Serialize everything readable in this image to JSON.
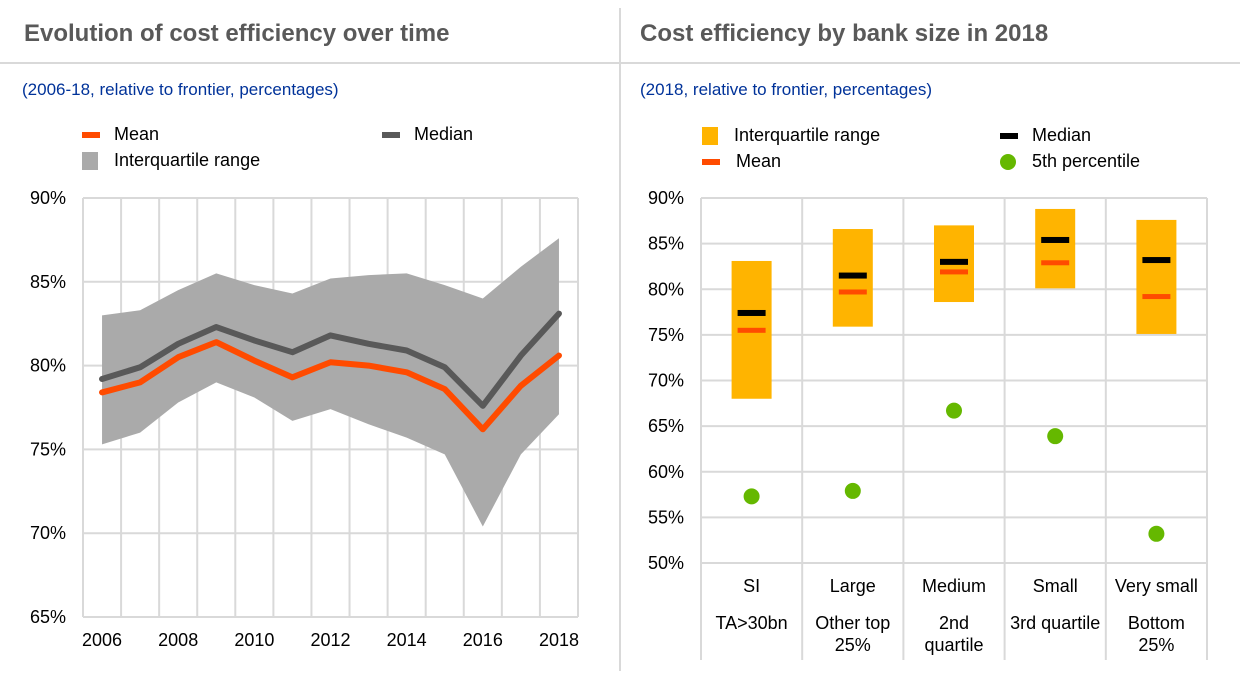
{
  "colors": {
    "mean": "#ff4b00",
    "median_left": "#595959",
    "median_right": "#000000",
    "iqr_left": "#aaaaaa",
    "iqr_right": "#ffb400",
    "p5": "#65b800",
    "grid": "#d9d9d9",
    "title": "#595959",
    "subtitle": "#003299"
  },
  "left": {
    "title": "Evolution of cost efficiency over time",
    "subtitle": "(2006-18, relative to frontier, percentages)",
    "legend": {
      "mean": "Mean",
      "median": "Median",
      "iqr": "Interquartile range"
    }
  },
  "right": {
    "title": "Cost efficiency by bank size in 2018",
    "subtitle": "(2018, relative to frontier, percentages)",
    "legend": {
      "iqr": "Interquartile range",
      "median": "Median",
      "mean": "Mean",
      "p5": "5th percentile"
    }
  },
  "chart_data": [
    {
      "type": "line",
      "title": "Evolution of cost efficiency over time",
      "subtitle": "(2006-18, relative to frontier, percentages)",
      "x": [
        2006,
        2007,
        2008,
        2009,
        2010,
        2011,
        2012,
        2013,
        2014,
        2015,
        2016,
        2017,
        2018
      ],
      "xticks": [
        "2006",
        "2008",
        "2010",
        "2012",
        "2014",
        "2016",
        "2018"
      ],
      "yticks": [
        "65%",
        "70%",
        "75%",
        "80%",
        "85%",
        "90%"
      ],
      "ylim": [
        65,
        90
      ],
      "grid": true,
      "legend": "top",
      "series": [
        {
          "name": "Mean",
          "values": [
            78.4,
            79.0,
            80.5,
            81.4,
            80.3,
            79.3,
            80.2,
            80.0,
            79.6,
            78.6,
            76.2,
            78.8,
            80.6
          ]
        },
        {
          "name": "Median",
          "values": [
            79.2,
            79.9,
            81.3,
            82.3,
            81.5,
            80.8,
            81.8,
            81.3,
            80.9,
            79.9,
            77.6,
            80.6,
            83.1
          ]
        },
        {
          "name": "Interquartile range",
          "upper": [
            83.0,
            83.3,
            84.5,
            85.5,
            84.8,
            84.3,
            85.2,
            85.4,
            85.5,
            84.8,
            84.0,
            85.9,
            87.6
          ],
          "lower": [
            75.3,
            76.0,
            77.8,
            79.0,
            78.1,
            76.7,
            77.4,
            76.5,
            75.7,
            74.7,
            70.4,
            74.7,
            77.1
          ]
        }
      ]
    },
    {
      "type": "bar",
      "title": "Cost efficiency by bank size in 2018",
      "subtitle": "(2018, relative to frontier, percentages)",
      "categories": [
        "SI",
        "Large",
        "Medium",
        "Small",
        "Very small"
      ],
      "category_sublabels": [
        "TA>30bn",
        "Other top 25%",
        "2nd quartile",
        "3rd quartile",
        "Bottom 25%"
      ],
      "yticks": [
        "50%",
        "55%",
        "60%",
        "65%",
        "70%",
        "75%",
        "80%",
        "85%",
        "90%"
      ],
      "ylim": [
        50,
        90
      ],
      "grid": true,
      "legend": "top",
      "series": [
        {
          "name": "Interquartile range",
          "upper": [
            83.1,
            86.6,
            87.0,
            88.8,
            87.6
          ],
          "lower": [
            68.0,
            75.9,
            78.6,
            80.1,
            75.1
          ]
        },
        {
          "name": "Median",
          "values": [
            77.4,
            81.5,
            83.0,
            85.4,
            83.2
          ]
        },
        {
          "name": "Mean",
          "values": [
            75.5,
            79.7,
            81.9,
            82.9,
            79.2
          ]
        },
        {
          "name": "5th percentile",
          "values": [
            57.3,
            57.9,
            66.7,
            63.9,
            53.2
          ]
        }
      ]
    }
  ]
}
